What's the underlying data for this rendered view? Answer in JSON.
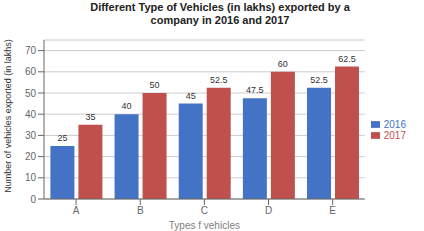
{
  "chart_data": {
    "type": "bar",
    "title": "Different Type of Vehicles (in lakhs) exported by a\ncompany in 2016 and 2017",
    "categories": [
      "A",
      "B",
      "C",
      "D",
      "E"
    ],
    "series": [
      {
        "name": "2016",
        "color": "#4472C4",
        "values": [
          25,
          40,
          45,
          47.5,
          52.5
        ]
      },
      {
        "name": "2017",
        "color": "#C0504D",
        "values": [
          35,
          50,
          52.5,
          60,
          62.5
        ]
      }
    ],
    "xlabel": "Types f vehicles",
    "ylabel": "Number of vehicles exported (in lakhs)",
    "ylim": [
      0,
      75
    ],
    "yticks": [
      0,
      10,
      20,
      30,
      40,
      50,
      60,
      70
    ],
    "grid": true,
    "legend": "right",
    "data_labels": true
  }
}
